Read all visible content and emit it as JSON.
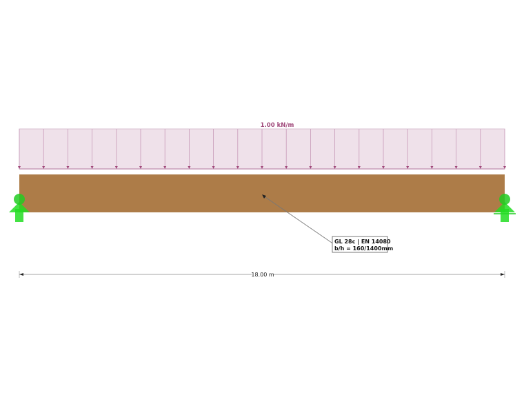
{
  "load": {
    "label": "1.00 kN/m",
    "color": "#a0487a",
    "fill": "#efe1ea",
    "arrow_count": 21
  },
  "beam": {
    "color": "#ad7c48",
    "annotation_line1": "GL 28c | EN 14080",
    "annotation_line2": "b/h = 160/1400mm"
  },
  "supports": {
    "color": "#22dd22",
    "items": [
      {
        "type": "pinned"
      },
      {
        "type": "roller"
      }
    ]
  },
  "dimension": {
    "label": "18.00 m"
  }
}
